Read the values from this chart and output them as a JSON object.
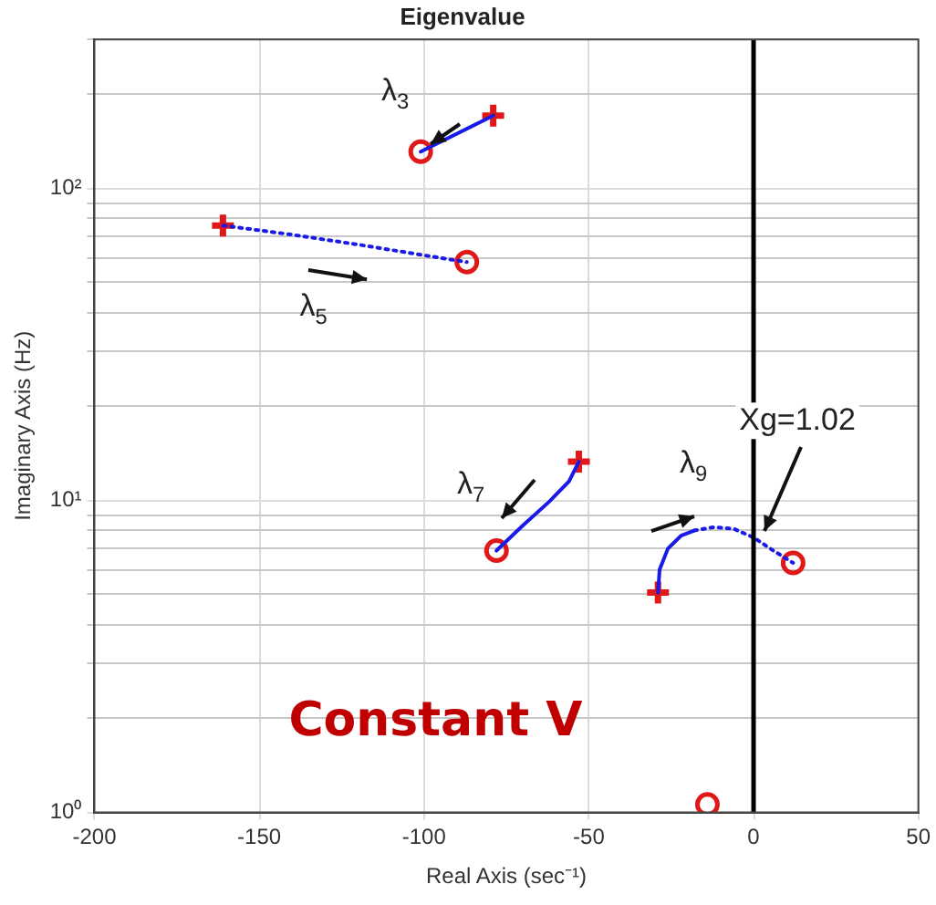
{
  "chart_data": {
    "type": "line",
    "title": "Eigenvalue",
    "xlabel": "Real Axis (sec⁻¹)",
    "ylabel": "Imaginary Axis (Hz)",
    "xlim": [
      -200,
      50
    ],
    "xticks": [
      -200,
      -150,
      -100,
      -50,
      0,
      50
    ],
    "ylim": [
      1,
      300
    ],
    "yticks": [
      {
        "value": 1,
        "label": "10⁰"
      },
      {
        "value": 2,
        "label": null
      },
      {
        "value": 3,
        "label": null
      },
      {
        "value": 4,
        "label": null
      },
      {
        "value": 5,
        "label": null
      },
      {
        "value": 6,
        "label": null
      },
      {
        "value": 7,
        "label": null
      },
      {
        "value": 8,
        "label": null
      },
      {
        "value": 9,
        "label": null
      },
      {
        "value": 10,
        "label": "10¹"
      },
      {
        "value": 20,
        "label": null
      },
      {
        "value": 30,
        "label": null
      },
      {
        "value": 40,
        "label": null
      },
      {
        "value": 50,
        "label": null
      },
      {
        "value": 60,
        "label": null
      },
      {
        "value": 70,
        "label": null
      },
      {
        "value": 80,
        "label": null
      },
      {
        "value": 90,
        "label": null
      },
      {
        "value": 100,
        "label": "10²"
      },
      {
        "value": 200,
        "label": null
      },
      {
        "value": 300,
        "label": null
      }
    ],
    "log": "y",
    "grid": true,
    "legend": false,
    "series": [
      {
        "type": "line",
        "color": "#1a1ae6",
        "marker": "none",
        "line_style": "solid",
        "x": [
          -101,
          -79
        ],
        "values": [
          131,
          171
        ]
      },
      {
        "type": "line",
        "color": "#1a1ae6",
        "marker": "none",
        "line_style": "dotted",
        "x": [
          -161,
          -140,
          -120,
          -100,
          -87
        ],
        "values": [
          76,
          71,
          66,
          61,
          58
        ]
      },
      {
        "type": "line",
        "color": "#1a1ae6",
        "marker": "none",
        "line_style": "solid",
        "x": [
          -78,
          -70,
          -62,
          -56,
          -53
        ],
        "values": [
          6.9,
          8.3,
          9.9,
          11.5,
          13.3
        ]
      },
      {
        "type": "line",
        "color": "#1a1ae6",
        "marker": "none",
        "line_style": "solid",
        "x": [
          -29,
          -28.5,
          -26,
          -22,
          -18
        ],
        "values": [
          5.06,
          6.0,
          7.0,
          7.7,
          8.0
        ]
      },
      {
        "type": "line",
        "color": "#1a1ae6",
        "marker": "none",
        "line_style": "dotted",
        "x": [
          -18,
          -12,
          -6,
          0,
          6,
          12
        ],
        "values": [
          8.0,
          8.2,
          8.1,
          7.6,
          6.9,
          6.3
        ]
      },
      {
        "type": "scatter",
        "color": "#e01818",
        "marker": "cross",
        "x": [
          -79,
          -161,
          -53,
          -29
        ],
        "values": [
          171,
          76,
          13.3,
          5.06
        ]
      },
      {
        "type": "scatter",
        "color": "#e01818",
        "marker": "circle",
        "x": [
          -101,
          -87,
          -78,
          12,
          -14
        ],
        "values": [
          131,
          58,
          6.9,
          6.3,
          1.06
        ]
      }
    ],
    "ref_lines": [
      {
        "axis": "x",
        "value": 0,
        "color": "#000000"
      }
    ],
    "annotations": [
      {
        "text": "λ$_{3}$",
        "x": -101,
        "y": 131
      },
      "λ$_{5}$",
      {
        "text": "λ$_{7}$",
        "x": -78,
        "y": 6.9
      },
      "λ$_{9}$",
      {
        "text": "Xg=1.02",
        "x": 0,
        "y": 7.6
      },
      "Constant V"
    ]
  }
}
